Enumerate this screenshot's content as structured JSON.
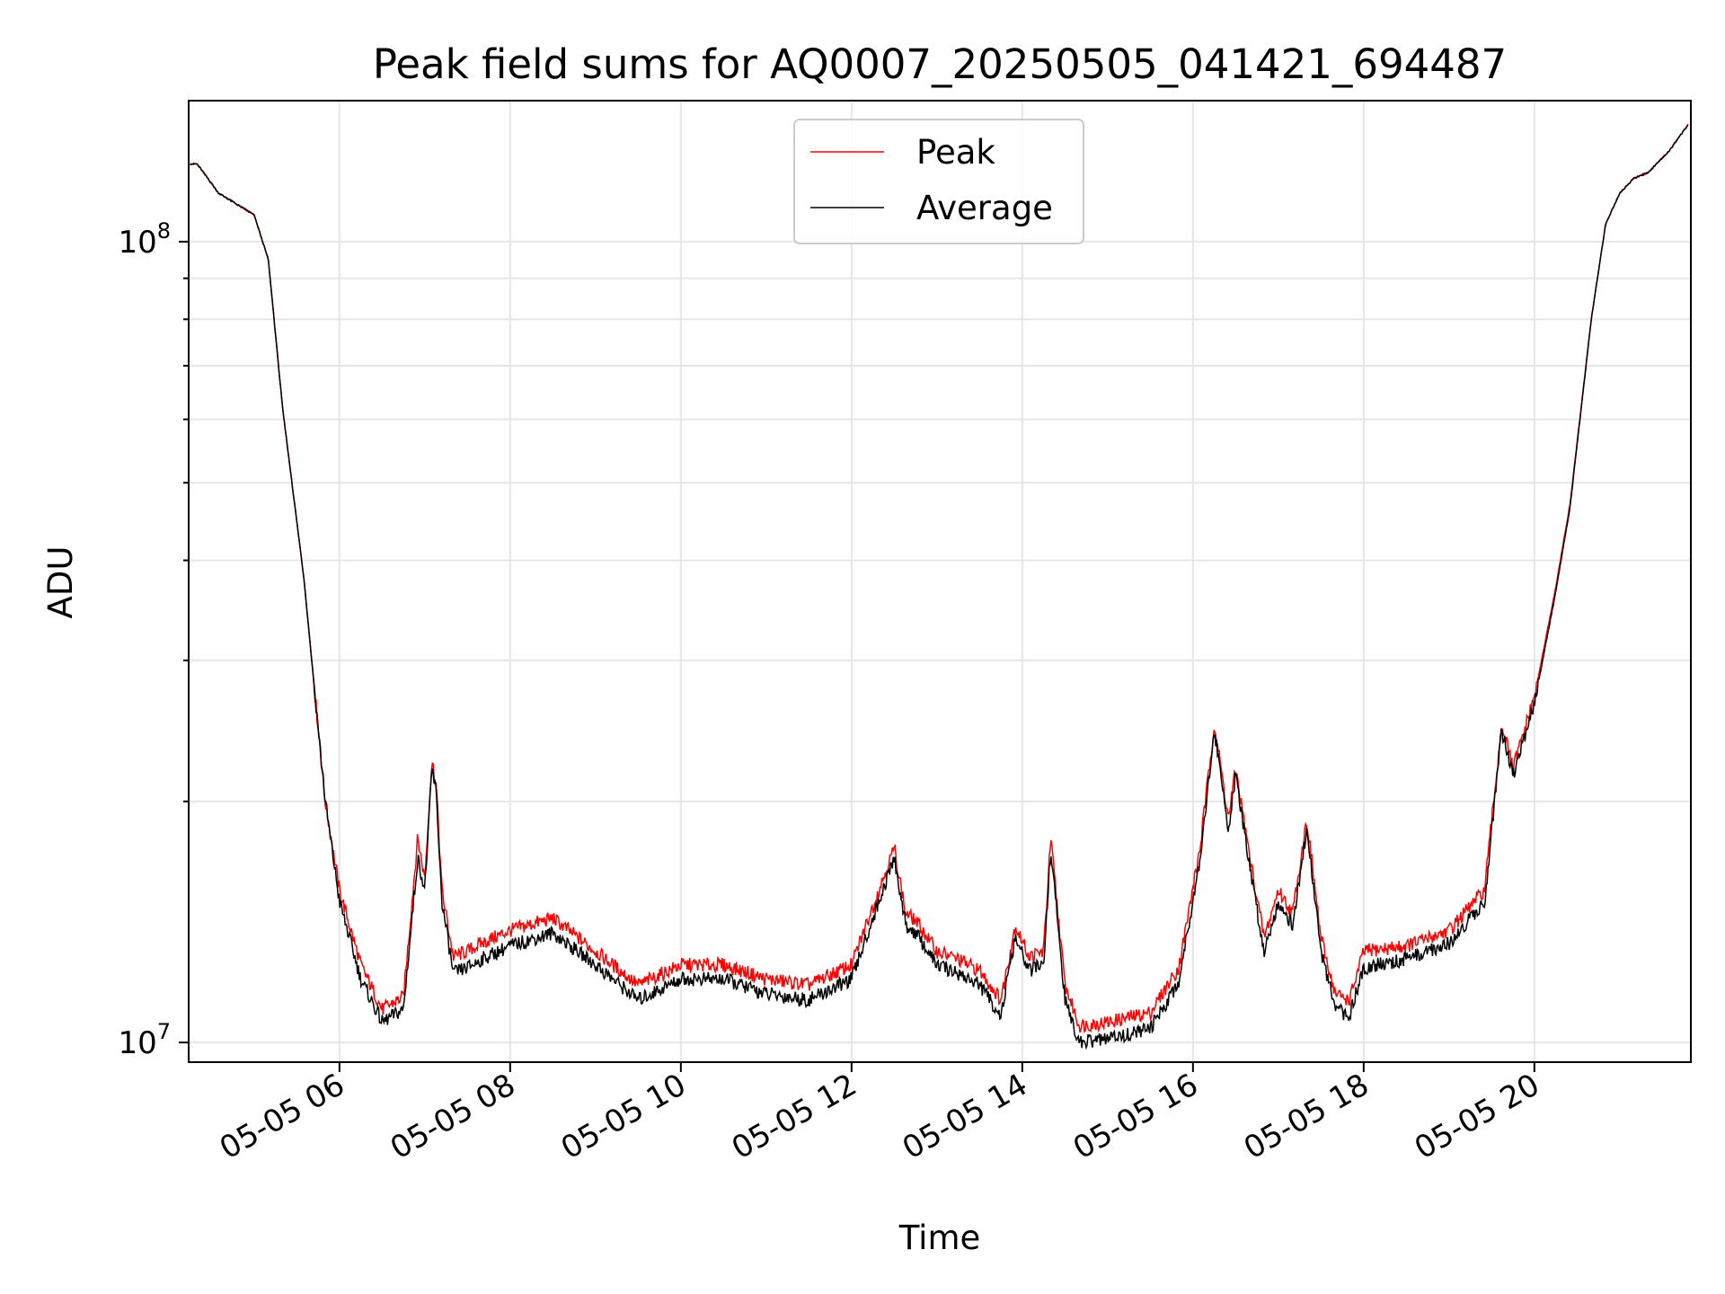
{
  "chart_data": {
    "type": "line",
    "title": "Peak field sums for AQ0007_20250505_041421_694487",
    "xlabel": "Time",
    "ylabel": "ADU",
    "yscale": "log",
    "xlim": [
      "2025-05-05 04:14",
      "2025-05-05 21:50"
    ],
    "ylim": [
      9450000,
      150000000
    ],
    "x_ticks": [
      "05-05 06",
      "05-05 08",
      "05-05 10",
      "05-05 12",
      "05-05 14",
      "05-05 16",
      "05-05 18",
      "05-05 20"
    ],
    "y_ticks": [
      "10^8",
      "10^7"
    ],
    "grid": true,
    "legend_position": "upper center",
    "colors": {
      "Peak": "#ff0000",
      "Average": "#000000"
    },
    "x": [
      "2025-05-05 04:15",
      "2025-05-05 04:20",
      "2025-05-05 04:35",
      "2025-05-05 05:00",
      "2025-05-05 05:10",
      "2025-05-05 05:20",
      "2025-05-05 05:35",
      "2025-05-05 05:50",
      "2025-05-05 06:00",
      "2025-05-05 06:15",
      "2025-05-05 06:30",
      "2025-05-05 06:45",
      "2025-05-05 06:55",
      "2025-05-05 07:00",
      "2025-05-05 07:05",
      "2025-05-05 07:08",
      "2025-05-05 07:12",
      "2025-05-05 07:20",
      "2025-05-05 07:30",
      "2025-05-05 07:40",
      "2025-05-05 08:00",
      "2025-05-05 08:30",
      "2025-05-05 09:00",
      "2025-05-05 09:30",
      "2025-05-05 10:00",
      "2025-05-05 10:30",
      "2025-05-05 11:00",
      "2025-05-05 11:30",
      "2025-05-05 12:00",
      "2025-05-05 12:30",
      "2025-05-05 12:38",
      "2025-05-05 12:45",
      "2025-05-05 13:00",
      "2025-05-05 13:15",
      "2025-05-05 13:30",
      "2025-05-05 13:45",
      "2025-05-05 13:55",
      "2025-05-05 14:05",
      "2025-05-05 14:15",
      "2025-05-05 14:20",
      "2025-05-05 14:30",
      "2025-05-05 14:40",
      "2025-05-05 15:00",
      "2025-05-05 15:30",
      "2025-05-05 15:50",
      "2025-05-05 16:05",
      "2025-05-05 16:15",
      "2025-05-05 16:25",
      "2025-05-05 16:30",
      "2025-05-05 16:40",
      "2025-05-05 16:50",
      "2025-05-05 17:00",
      "2025-05-05 17:10",
      "2025-05-05 17:20",
      "2025-05-05 17:30",
      "2025-05-05 17:40",
      "2025-05-05 17:50",
      "2025-05-05 18:00",
      "2025-05-05 18:30",
      "2025-05-05 19:00",
      "2025-05-05 19:25",
      "2025-05-05 19:37",
      "2025-05-05 19:45",
      "2025-05-05 20:00",
      "2025-05-05 20:15",
      "2025-05-05 20:25",
      "2025-05-05 20:40",
      "2025-05-05 20:50",
      "2025-05-05 21:00",
      "2025-05-05 21:10",
      "2025-05-05 21:20",
      "2025-05-05 21:35",
      "2025-05-05 21:48"
    ],
    "series": [
      {
        "name": "Peak",
        "values": [
          125000000,
          125000000,
          115000000,
          108000000,
          95000000,
          62000000,
          38000000,
          20000000,
          15500000,
          12500000,
          11000000,
          11400000,
          18000000,
          16000000,
          22500000,
          21000000,
          15500000,
          12800000,
          13000000,
          13300000,
          13800000,
          14300000,
          13000000,
          11800000,
          12500000,
          12500000,
          12000000,
          11800000,
          12500000,
          17500000,
          14500000,
          14200000,
          13000000,
          12700000,
          12300000,
          11300000,
          14000000,
          12800000,
          13000000,
          18000000,
          11800000,
          10500000,
          10600000,
          10900000,
          12400000,
          17500000,
          25000000,
          19000000,
          22000000,
          17000000,
          13500000,
          15500000,
          14500000,
          19000000,
          13500000,
          11500000,
          11300000,
          13000000,
          13200000,
          13800000,
          15500000,
          25000000,
          22000000,
          27000000,
          37000000,
          47000000,
          80000000,
          105000000,
          115000000,
          120000000,
          122000000,
          130000000,
          140000000
        ]
      },
      {
        "name": "Average",
        "values": [
          125000000,
          125000000,
          115000000,
          108000000,
          95000000,
          62000000,
          38000000,
          20000000,
          15000000,
          12000000,
          10600000,
          11000000,
          17000000,
          15500000,
          22000000,
          20500000,
          15000000,
          12200000,
          12400000,
          12700000,
          13200000,
          13700000,
          12500000,
          11300000,
          12000000,
          12000000,
          11500000,
          11300000,
          12000000,
          17000000,
          14000000,
          13700000,
          12500000,
          12200000,
          11800000,
          10800000,
          13500000,
          12300000,
          12500000,
          17500000,
          11300000,
          10000000,
          10100000,
          10400000,
          11900000,
          17000000,
          24500000,
          18500000,
          21500000,
          16500000,
          13000000,
          15000000,
          14000000,
          18500000,
          13000000,
          11000000,
          10800000,
          12400000,
          12700000,
          13300000,
          15000000,
          24500000,
          21500000,
          26500000,
          36500000,
          46500000,
          80000000,
          105000000,
          115000000,
          120000000,
          122000000,
          130000000,
          140000000
        ]
      }
    ]
  }
}
